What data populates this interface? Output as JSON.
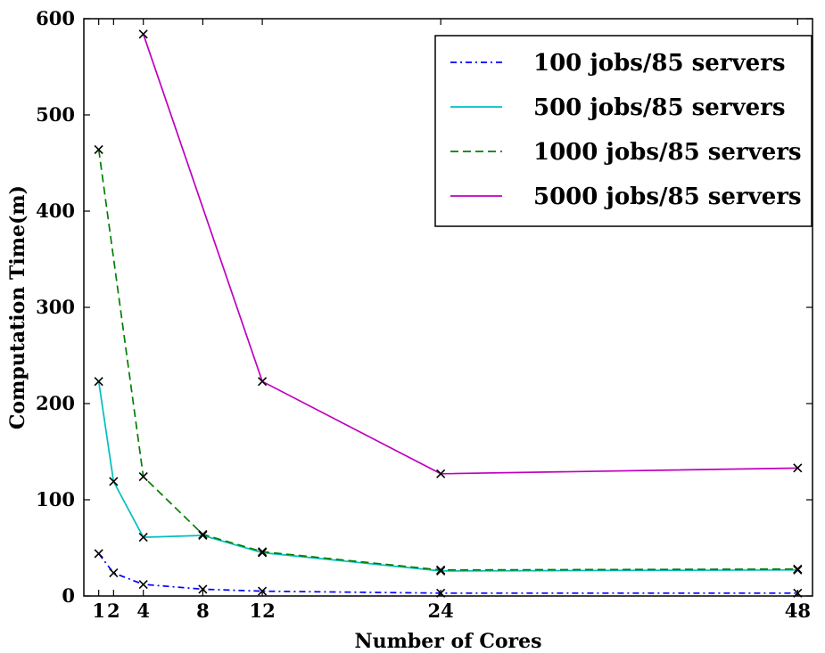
{
  "chart_data": {
    "type": "line",
    "title": "",
    "xlabel": "Number of Cores",
    "ylabel": "Computation Time(m)",
    "xlim": [
      0,
      49
    ],
    "ylim": [
      0,
      600
    ],
    "xticks": [
      1,
      2,
      4,
      8,
      12,
      24,
      48
    ],
    "yticks": [
      0,
      100,
      200,
      300,
      400,
      500,
      600
    ],
    "grid": false,
    "legend_position": "top-right",
    "marker": "x",
    "marker_color": "#000000",
    "series": [
      {
        "name": "100 jobs/85 servers",
        "color": "#0000ff",
        "dash": "dashdot",
        "points": [
          [
            1,
            44
          ],
          [
            2,
            24
          ],
          [
            4,
            12
          ],
          [
            8,
            7
          ],
          [
            12,
            5
          ],
          [
            24,
            3
          ],
          [
            48,
            3
          ]
        ]
      },
      {
        "name": "500 jobs/85 servers",
        "color": "#00bfbf",
        "dash": "solid",
        "points": [
          [
            1,
            223
          ],
          [
            2,
            119
          ],
          [
            4,
            61
          ],
          [
            8,
            63
          ],
          [
            12,
            45
          ],
          [
            24,
            26
          ],
          [
            48,
            27
          ]
        ]
      },
      {
        "name": "1000 jobs/85 servers",
        "color": "#007f00",
        "dash": "dashed",
        "points": [
          [
            1,
            464
          ],
          [
            4,
            124
          ],
          [
            8,
            64
          ],
          [
            12,
            46
          ],
          [
            24,
            27
          ],
          [
            48,
            28
          ]
        ]
      },
      {
        "name": "5000 jobs/85 servers",
        "color": "#bf00bf",
        "dash": "solid",
        "points": [
          [
            4,
            584
          ],
          [
            12,
            223
          ],
          [
            24,
            127
          ],
          [
            48,
            133
          ]
        ]
      }
    ]
  }
}
